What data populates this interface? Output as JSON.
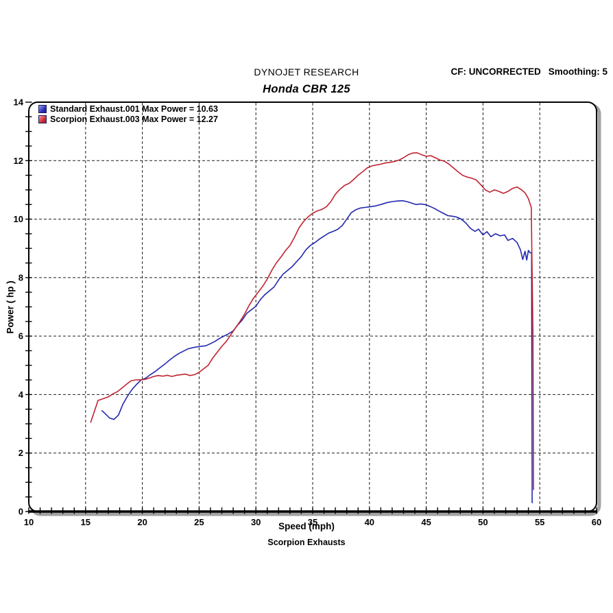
{
  "header": {
    "brand": "DYNOJET RESEARCH",
    "cf": "CF: UNCORRECTED",
    "smoothing": "Smoothing: 5",
    "title": "Honda CBR 125"
  },
  "footer": {
    "brand": "Scorpion Exhausts"
  },
  "chart_data": {
    "type": "line",
    "title": "Honda CBR 125",
    "xlabel": "Speed (mph)",
    "ylabel": "Power ( hp )",
    "xlim": [
      10,
      60
    ],
    "ylim": [
      0,
      14
    ],
    "x_ticks": [
      10,
      15,
      20,
      25,
      30,
      35,
      40,
      45,
      50,
      55,
      60
    ],
    "y_ticks": [
      0,
      2,
      4,
      6,
      8,
      10,
      12,
      14
    ],
    "x_minor_step": 1,
    "y_minor_step": 0.5,
    "grid": "dashed at major ticks",
    "legend_position": "top-left",
    "colors": {
      "frame": "#000000",
      "shadow": "#a3a3a3",
      "grid": "#1a1a1a",
      "text": "#000000"
    },
    "series": [
      {
        "name": "Standard Exhaust.001 Max Power = 10.63",
        "max_power": 10.63,
        "color": "#2126ad",
        "swatch_light": "#9aa0ff",
        "points": [
          [
            16.45,
            3.45
          ],
          [
            16.8,
            3.32
          ],
          [
            17.1,
            3.2
          ],
          [
            17.5,
            3.15
          ],
          [
            17.9,
            3.3
          ],
          [
            18.3,
            3.68
          ],
          [
            18.7,
            3.95
          ],
          [
            19.1,
            4.18
          ],
          [
            19.5,
            4.35
          ],
          [
            19.9,
            4.5
          ],
          [
            20.3,
            4.56
          ],
          [
            20.7,
            4.68
          ],
          [
            21.1,
            4.78
          ],
          [
            21.5,
            4.9
          ],
          [
            22,
            5.05
          ],
          [
            22.4,
            5.18
          ],
          [
            22.8,
            5.3
          ],
          [
            23.2,
            5.4
          ],
          [
            23.6,
            5.48
          ],
          [
            24,
            5.56
          ],
          [
            24.4,
            5.6
          ],
          [
            24.8,
            5.63
          ],
          [
            25.2,
            5.65
          ],
          [
            25.6,
            5.67
          ],
          [
            26,
            5.74
          ],
          [
            26.4,
            5.82
          ],
          [
            26.8,
            5.92
          ],
          [
            27.2,
            6
          ],
          [
            27.6,
            6.08
          ],
          [
            28,
            6.18
          ],
          [
            28.4,
            6.38
          ],
          [
            28.8,
            6.55
          ],
          [
            29.2,
            6.78
          ],
          [
            29.6,
            6.9
          ],
          [
            30,
            7.02
          ],
          [
            30.4,
            7.25
          ],
          [
            30.8,
            7.42
          ],
          [
            31.2,
            7.55
          ],
          [
            31.6,
            7.68
          ],
          [
            32,
            7.92
          ],
          [
            32.4,
            8.12
          ],
          [
            32.8,
            8.25
          ],
          [
            33.2,
            8.38
          ],
          [
            33.6,
            8.55
          ],
          [
            34,
            8.72
          ],
          [
            34.4,
            8.95
          ],
          [
            34.8,
            9.1
          ],
          [
            35.2,
            9.2
          ],
          [
            35.6,
            9.32
          ],
          [
            36,
            9.42
          ],
          [
            36.4,
            9.52
          ],
          [
            36.8,
            9.58
          ],
          [
            37.2,
            9.65
          ],
          [
            37.6,
            9.78
          ],
          [
            38,
            10
          ],
          [
            38.4,
            10.22
          ],
          [
            38.8,
            10.32
          ],
          [
            39.2,
            10.38
          ],
          [
            39.6,
            10.4
          ],
          [
            40,
            10.42
          ],
          [
            40.5,
            10.45
          ],
          [
            41,
            10.5
          ],
          [
            41.5,
            10.56
          ],
          [
            42,
            10.6
          ],
          [
            42.5,
            10.62
          ],
          [
            42.9,
            10.63
          ],
          [
            43.3,
            10.6
          ],
          [
            43.7,
            10.55
          ],
          [
            44.1,
            10.5
          ],
          [
            44.5,
            10.52
          ],
          [
            44.9,
            10.5
          ],
          [
            45.3,
            10.44
          ],
          [
            45.7,
            10.37
          ],
          [
            46.1,
            10.28
          ],
          [
            46.5,
            10.2
          ],
          [
            46.9,
            10.12
          ],
          [
            47.3,
            10.1
          ],
          [
            47.7,
            10.07
          ],
          [
            48.1,
            10
          ],
          [
            48.5,
            9.86
          ],
          [
            48.9,
            9.68
          ],
          [
            49.3,
            9.58
          ],
          [
            49.6,
            9.66
          ],
          [
            50,
            9.46
          ],
          [
            50.35,
            9.57
          ],
          [
            50.7,
            9.4
          ],
          [
            51.1,
            9.5
          ],
          [
            51.5,
            9.43
          ],
          [
            51.9,
            9.46
          ],
          [
            52.2,
            9.27
          ],
          [
            52.6,
            9.34
          ],
          [
            53,
            9.2
          ],
          [
            53.3,
            8.95
          ],
          [
            53.5,
            8.62
          ],
          [
            53.7,
            8.9
          ],
          [
            53.85,
            8.6
          ],
          [
            54,
            8.93
          ],
          [
            54.15,
            8.85
          ],
          [
            54.28,
            8.85
          ],
          [
            54.3,
            5
          ],
          [
            54.33,
            0.3
          ]
        ]
      },
      {
        "name": "Scorpion Exhaust.003 Max Power = 12.27",
        "max_power": 12.27,
        "color": "#c0222f",
        "swatch_light": "#ff9aa0",
        "points": [
          [
            15.45,
            3.05
          ],
          [
            15.8,
            3.45
          ],
          [
            16.1,
            3.8
          ],
          [
            16.5,
            3.85
          ],
          [
            17,
            3.92
          ],
          [
            17.4,
            4.02
          ],
          [
            17.8,
            4.1
          ],
          [
            18.2,
            4.22
          ],
          [
            18.6,
            4.35
          ],
          [
            19,
            4.47
          ],
          [
            19.4,
            4.5
          ],
          [
            19.8,
            4.5
          ],
          [
            20.2,
            4.52
          ],
          [
            20.6,
            4.56
          ],
          [
            21,
            4.62
          ],
          [
            21.4,
            4.65
          ],
          [
            21.8,
            4.63
          ],
          [
            22.2,
            4.66
          ],
          [
            22.6,
            4.62
          ],
          [
            23,
            4.66
          ],
          [
            23.4,
            4.68
          ],
          [
            23.8,
            4.7
          ],
          [
            24.2,
            4.65
          ],
          [
            24.6,
            4.68
          ],
          [
            25,
            4.76
          ],
          [
            25.4,
            4.88
          ],
          [
            25.8,
            5
          ],
          [
            26.2,
            5.25
          ],
          [
            26.6,
            5.45
          ],
          [
            27,
            5.65
          ],
          [
            27.4,
            5.82
          ],
          [
            27.8,
            6.05
          ],
          [
            28.2,
            6.28
          ],
          [
            28.6,
            6.5
          ],
          [
            29,
            6.75
          ],
          [
            29.4,
            7.05
          ],
          [
            29.8,
            7.3
          ],
          [
            30.2,
            7.5
          ],
          [
            30.6,
            7.7
          ],
          [
            31,
            7.95
          ],
          [
            31.4,
            8.25
          ],
          [
            31.8,
            8.5
          ],
          [
            32.2,
            8.7
          ],
          [
            32.6,
            8.92
          ],
          [
            33,
            9.1
          ],
          [
            33.4,
            9.38
          ],
          [
            33.8,
            9.7
          ],
          [
            34.2,
            9.92
          ],
          [
            34.6,
            10.08
          ],
          [
            35,
            10.2
          ],
          [
            35.4,
            10.28
          ],
          [
            35.8,
            10.33
          ],
          [
            36.2,
            10.42
          ],
          [
            36.6,
            10.6
          ],
          [
            37,
            10.85
          ],
          [
            37.4,
            11.02
          ],
          [
            37.8,
            11.15
          ],
          [
            38.2,
            11.22
          ],
          [
            38.6,
            11.35
          ],
          [
            39,
            11.5
          ],
          [
            39.4,
            11.62
          ],
          [
            39.8,
            11.75
          ],
          [
            40.2,
            11.82
          ],
          [
            40.6,
            11.85
          ],
          [
            41,
            11.88
          ],
          [
            41.4,
            11.92
          ],
          [
            41.8,
            11.94
          ],
          [
            42.2,
            11.97
          ],
          [
            42.6,
            12.02
          ],
          [
            43,
            12.1
          ],
          [
            43.4,
            12.2
          ],
          [
            43.8,
            12.26
          ],
          [
            44.2,
            12.27
          ],
          [
            44.6,
            12.2
          ],
          [
            45,
            12.15
          ],
          [
            45.4,
            12.17
          ],
          [
            45.8,
            12.1
          ],
          [
            46.2,
            12.02
          ],
          [
            46.6,
            11.98
          ],
          [
            47,
            11.88
          ],
          [
            47.4,
            11.75
          ],
          [
            47.8,
            11.62
          ],
          [
            48.2,
            11.5
          ],
          [
            48.6,
            11.44
          ],
          [
            49,
            11.4
          ],
          [
            49.4,
            11.34
          ],
          [
            49.8,
            11.18
          ],
          [
            50.2,
            11
          ],
          [
            50.6,
            10.92
          ],
          [
            51,
            11
          ],
          [
            51.4,
            10.95
          ],
          [
            51.8,
            10.88
          ],
          [
            52.2,
            10.95
          ],
          [
            52.6,
            11.05
          ],
          [
            53,
            11.1
          ],
          [
            53.4,
            11
          ],
          [
            53.7,
            10.9
          ],
          [
            54,
            10.7
          ],
          [
            54.25,
            10.4
          ],
          [
            54.4,
            6
          ],
          [
            54.45,
            0.75
          ]
        ]
      }
    ]
  }
}
